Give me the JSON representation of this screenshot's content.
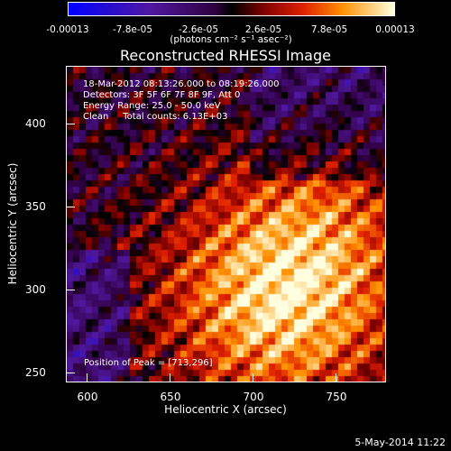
{
  "chart_data": {
    "type": "heatmap",
    "title": "Reconstructed RHESSI Image",
    "xlabel": "Heliocentric X (arcsec)",
    "ylabel": "Heliocentric Y (arcsec)",
    "xlim": [
      588,
      776
    ],
    "ylim": [
      243,
      430
    ],
    "x_ticks": [
      "600",
      "650",
      "700",
      "750"
    ],
    "y_ticks": [
      "250",
      "300",
      "350",
      "400"
    ],
    "colorbar": {
      "ticks": [
        "-0.00013",
        "-7.8e-05",
        "-2.6e-05",
        "2.6e-05",
        "7.8e-05",
        "0.00013"
      ],
      "units": "(photons cm⁻² s⁻¹ asec⁻²)",
      "range": [
        -0.00013,
        0.00013
      ]
    },
    "annotations": [
      "18-Mar-2012 08:13:26.000 to 08:19:26.000",
      "Detectors: 3F 5F 6F 7F 8F 9F, Att 0",
      "Energy Range: 25.0 - 50.0 keV",
      "Clean     Total counts: 6.13E+03"
    ],
    "peak_label": "Position of Peak = [713,296]",
    "peak": [
      713,
      296
    ],
    "date_stamp": "5-May-2014 11:22",
    "grid": false,
    "legend": "none"
  }
}
